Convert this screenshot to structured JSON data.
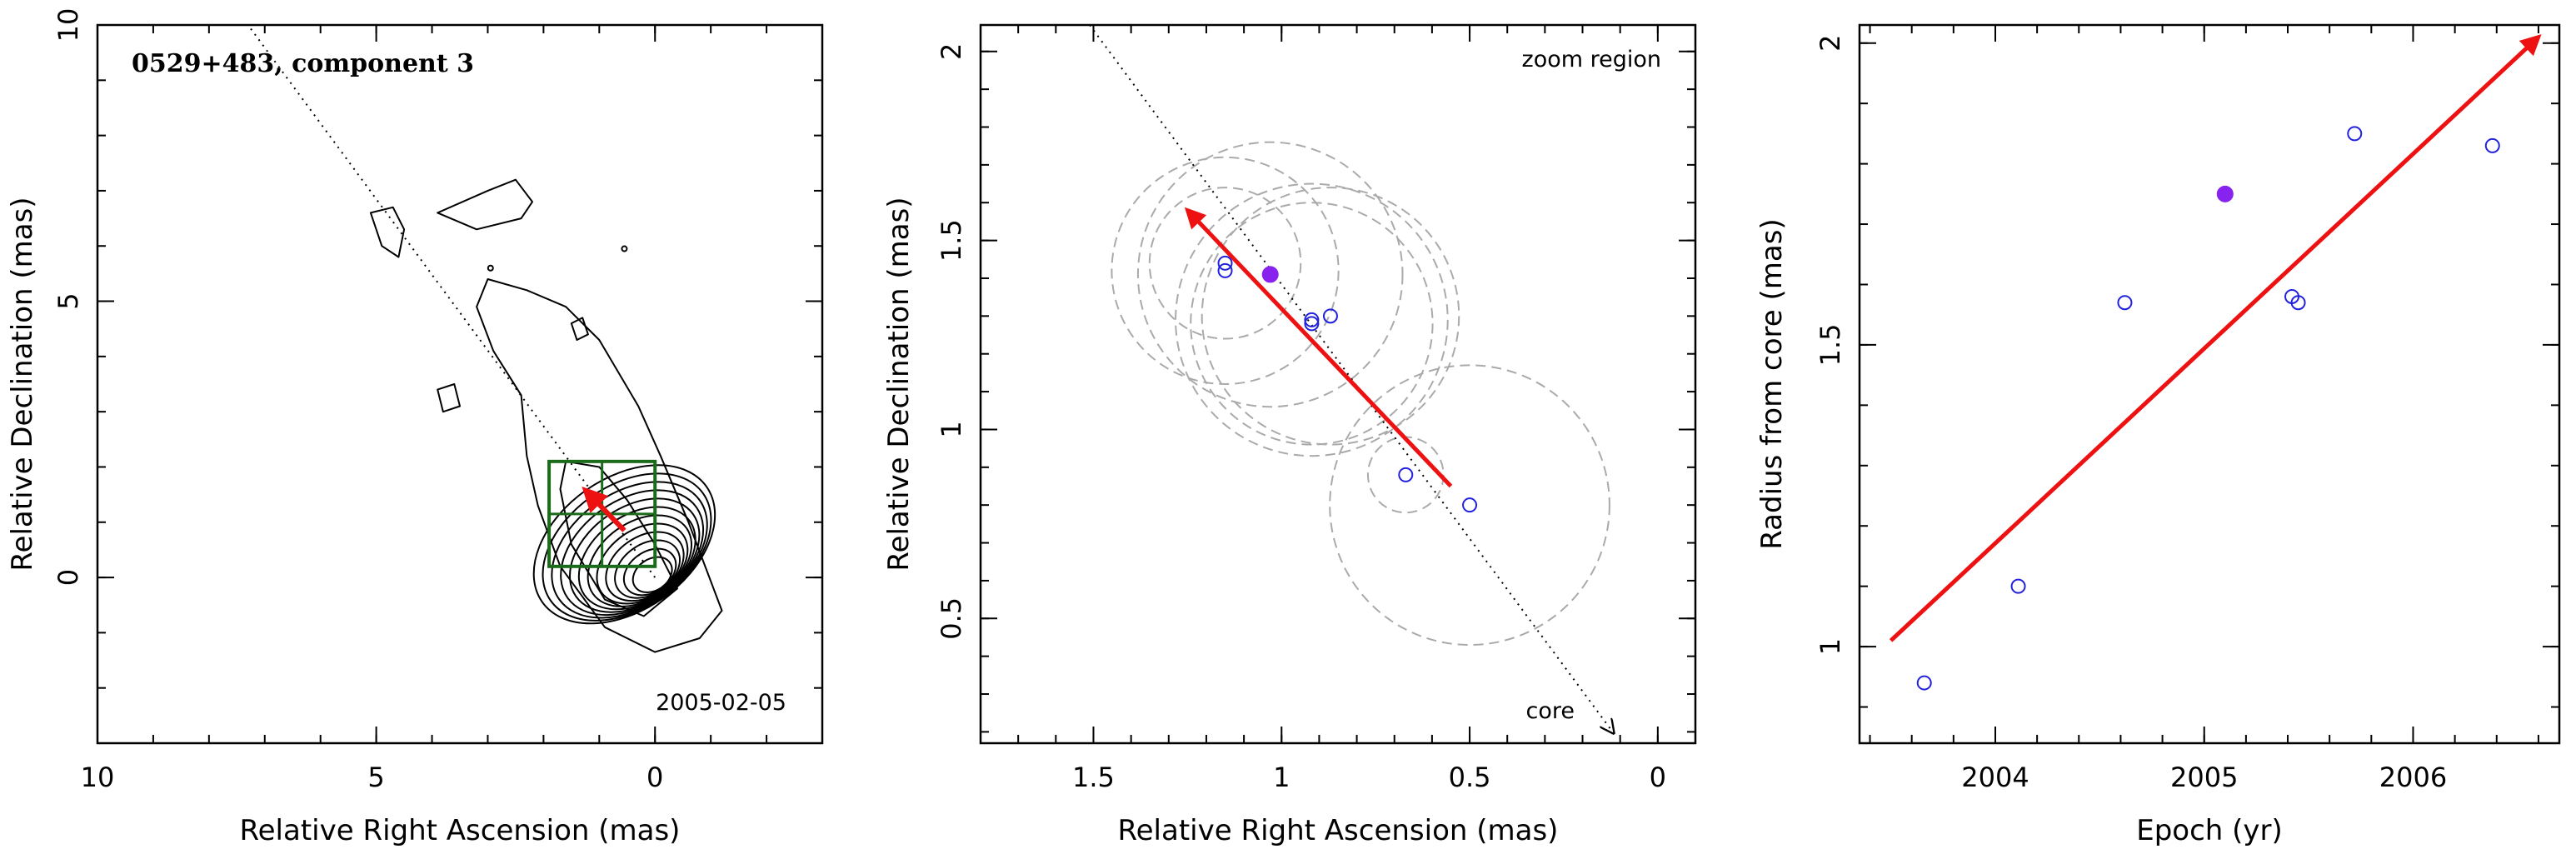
{
  "colors": {
    "frame": "#000000",
    "contour": "#000000",
    "arrow": "#ee1111",
    "box": "#1a6b1a",
    "open_point": "#2222dd",
    "filled_point": "#8822ee",
    "dashed_circle": "#aaaaaa",
    "track_line": "#000000"
  },
  "chart_data": [
    {
      "type": "contour",
      "title": "0529+483, component 3",
      "annotation": "2005-02-05",
      "xlabel": "Relative Right Ascension (mas)",
      "ylabel": "Relative Declination (mas)",
      "xlim": [
        10,
        -3
      ],
      "ylim": [
        -3,
        10
      ],
      "xticks": [
        10,
        5,
        0
      ],
      "yticks": [
        0,
        5,
        10
      ],
      "core": [
        0,
        0
      ],
      "contour_levels": 12,
      "component_arrow": {
        "from": [
          0.55,
          0.85
        ],
        "to": [
          1.25,
          1.58
        ]
      },
      "zoom_box": {
        "x_range": [
          1.9,
          0.0
        ],
        "y_range": [
          0.2,
          2.1
        ]
      },
      "track_line": {
        "from": [
          0,
          0
        ],
        "to": [
          7.3,
          10
        ]
      }
    },
    {
      "type": "scatter",
      "title": "zoom region",
      "annotation": "core",
      "xlabel": "Relative Right Ascension (mas)",
      "ylabel": "Relative Declination (mas)",
      "xlim": [
        1.8,
        -0.1
      ],
      "ylim": [
        0.17,
        2.07
      ],
      "xticks": [
        1.5,
        1,
        0.5,
        0
      ],
      "yticks": [
        0.5,
        1,
        1.5,
        2
      ],
      "points": [
        {
          "x": 1.15,
          "y": 1.44,
          "filled": false
        },
        {
          "x": 1.15,
          "y": 1.42,
          "filled": false
        },
        {
          "x": 1.03,
          "y": 1.41,
          "filled": true
        },
        {
          "x": 0.92,
          "y": 1.28,
          "filled": false
        },
        {
          "x": 0.92,
          "y": 1.29,
          "filled": false
        },
        {
          "x": 0.87,
          "y": 1.3,
          "filled": false
        },
        {
          "x": 0.67,
          "y": 0.88,
          "filled": false
        },
        {
          "x": 0.5,
          "y": 0.8,
          "filled": false
        }
      ],
      "error_circles": [
        {
          "x": 1.15,
          "y": 1.44,
          "r": 0.2
        },
        {
          "x": 1.15,
          "y": 1.42,
          "r": 0.3
        },
        {
          "x": 1.03,
          "y": 1.41,
          "r": 0.35
        },
        {
          "x": 0.92,
          "y": 1.28,
          "r": 0.32
        },
        {
          "x": 0.92,
          "y": 1.29,
          "r": 0.36
        },
        {
          "x": 0.87,
          "y": 1.3,
          "r": 0.34
        },
        {
          "x": 0.67,
          "y": 0.88,
          "r": 0.1
        },
        {
          "x": 0.5,
          "y": 0.8,
          "r": 0.37
        }
      ],
      "component_arrow": {
        "from": [
          0.55,
          0.85
        ],
        "to": [
          1.25,
          1.58
        ]
      },
      "track_line": {
        "from": [
          1.51,
          2.07
        ],
        "to": [
          0.12,
          0.2
        ]
      }
    },
    {
      "type": "scatter",
      "title": "",
      "xlabel": "Epoch (yr)",
      "ylabel": "Radius from core (mas)",
      "xlim": [
        2003.35,
        2006.7
      ],
      "ylim": [
        0.84,
        2.03
      ],
      "xticks": [
        2004,
        2005,
        2006
      ],
      "yticks": [
        1,
        1.5,
        2
      ],
      "points": [
        {
          "x": 2003.66,
          "y": 0.94,
          "filled": false
        },
        {
          "x": 2004.11,
          "y": 1.1,
          "filled": false
        },
        {
          "x": 2004.62,
          "y": 1.57,
          "filled": false
        },
        {
          "x": 2005.1,
          "y": 1.75,
          "filled": true
        },
        {
          "x": 2005.42,
          "y": 1.58,
          "filled": false
        },
        {
          "x": 2005.45,
          "y": 1.57,
          "filled": false
        },
        {
          "x": 2005.72,
          "y": 1.85,
          "filled": false
        },
        {
          "x": 2006.38,
          "y": 1.83,
          "filled": false
        }
      ],
      "fit_arrow": {
        "from": [
          2003.5,
          1.01
        ],
        "to": [
          2006.6,
          2.01
        ]
      }
    }
  ]
}
